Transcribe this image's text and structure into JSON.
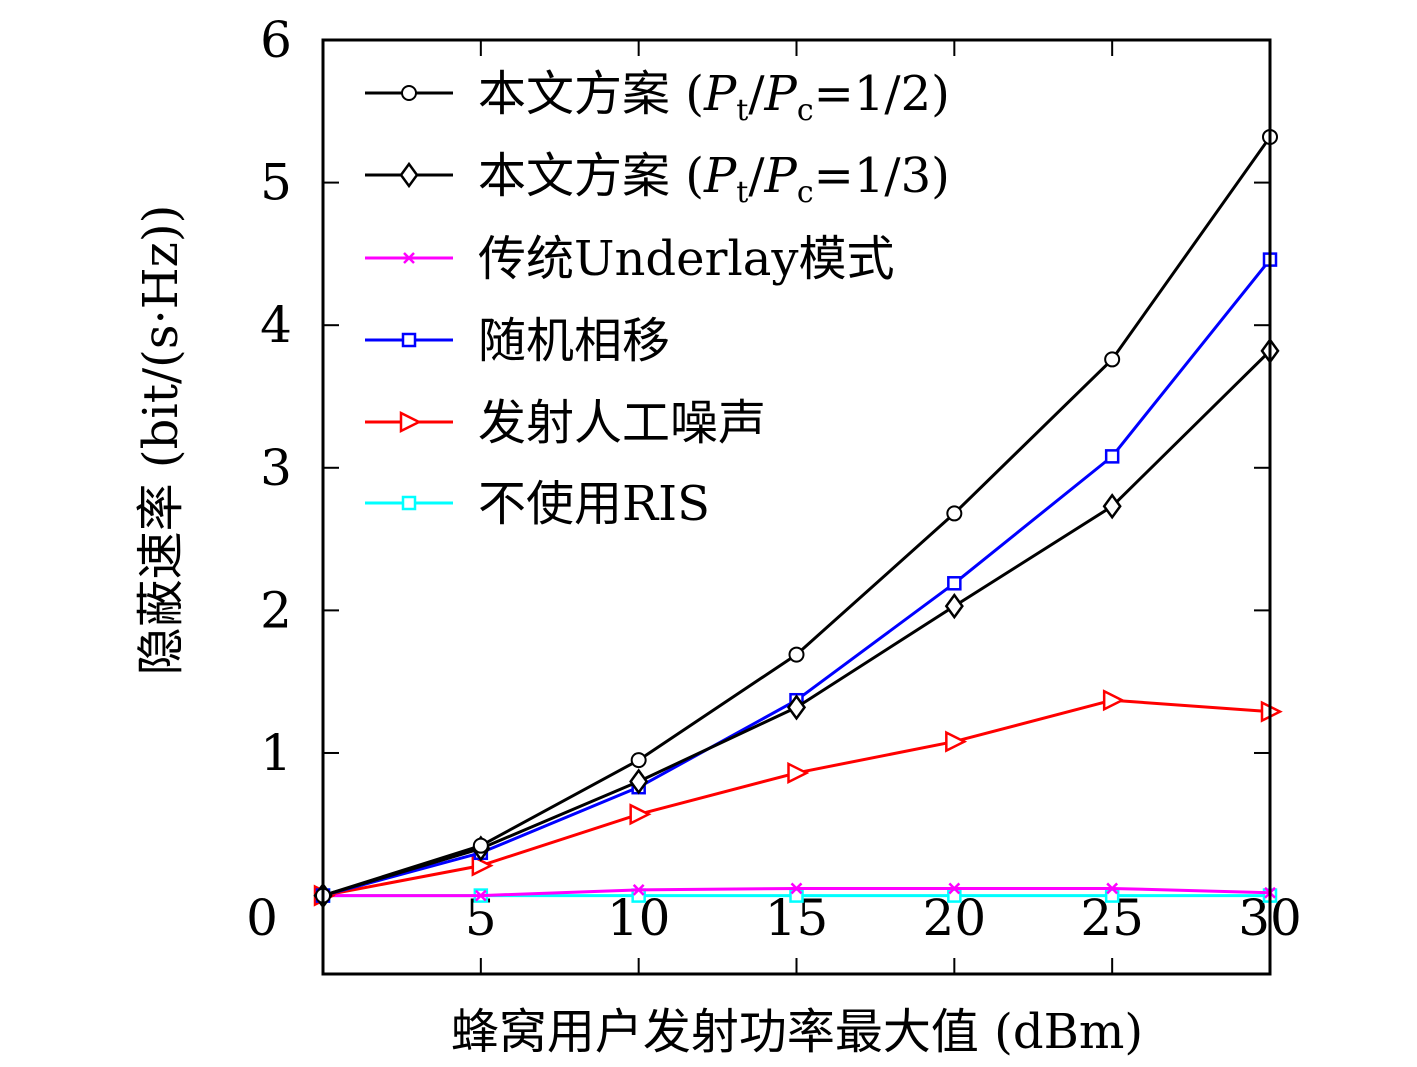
{
  "chart_data": {
    "type": "line",
    "title": "",
    "xlabel": "蜂窝用户发射功率最大值 (dBm)",
    "ylabel": "隐蔽速率 (bit/(s·Hz))",
    "x": [
      0,
      5,
      10,
      15,
      20,
      25,
      30
    ],
    "xticks": [
      "0",
      "5",
      "10",
      "15",
      "20",
      "25",
      "30"
    ],
    "yticks": [
      "1",
      "2",
      "3",
      "4",
      "5",
      "6"
    ],
    "xlim": [
      0,
      30
    ],
    "ylim": [
      -0.55,
      6
    ],
    "grid": false,
    "legend_position": "top-left",
    "series": [
      {
        "name": "本文方案 (Pt/Pc=1/2)",
        "legend_parts": {
          "prefix": "本文方案 (",
          "p1": "P",
          "s1": "t",
          "slash": "/",
          "p2": "P",
          "s2": "c",
          "suffix": "=1/2)"
        },
        "color": "#000000",
        "marker": "circle",
        "values": [
          0,
          0.35,
          0.95,
          1.69,
          2.68,
          3.76,
          5.32
        ]
      },
      {
        "name": "本文方案 (Pt/Pc=1/3)",
        "legend_parts": {
          "prefix": "本文方案 (",
          "p1": "P",
          "s1": "t",
          "slash": "/",
          "p2": "P",
          "s2": "c",
          "suffix": "=1/3)"
        },
        "color": "#000000",
        "marker": "diamond",
        "values": [
          0,
          0.33,
          0.8,
          1.32,
          2.03,
          2.73,
          3.82
        ]
      },
      {
        "name": "传统Underlay模式",
        "color": "#ff00ff",
        "marker": "x",
        "values": [
          0,
          0.0,
          0.04,
          0.05,
          0.05,
          0.05,
          0.02
        ]
      },
      {
        "name": "随机相移",
        "color": "#0000ff",
        "marker": "square",
        "values": [
          0,
          0.3,
          0.76,
          1.37,
          2.19,
          3.08,
          4.46
        ]
      },
      {
        "name": "发射人工噪声",
        "color": "#ff0000",
        "marker": "triangle-right",
        "values": [
          0,
          0.21,
          0.57,
          0.86,
          1.08,
          1.37,
          1.29
        ]
      },
      {
        "name": "不使用RIS",
        "color": "#00ffff",
        "marker": "square",
        "values": [
          0,
          0.0,
          0.0,
          0.0,
          0.0,
          0.0,
          0.0
        ]
      }
    ]
  }
}
